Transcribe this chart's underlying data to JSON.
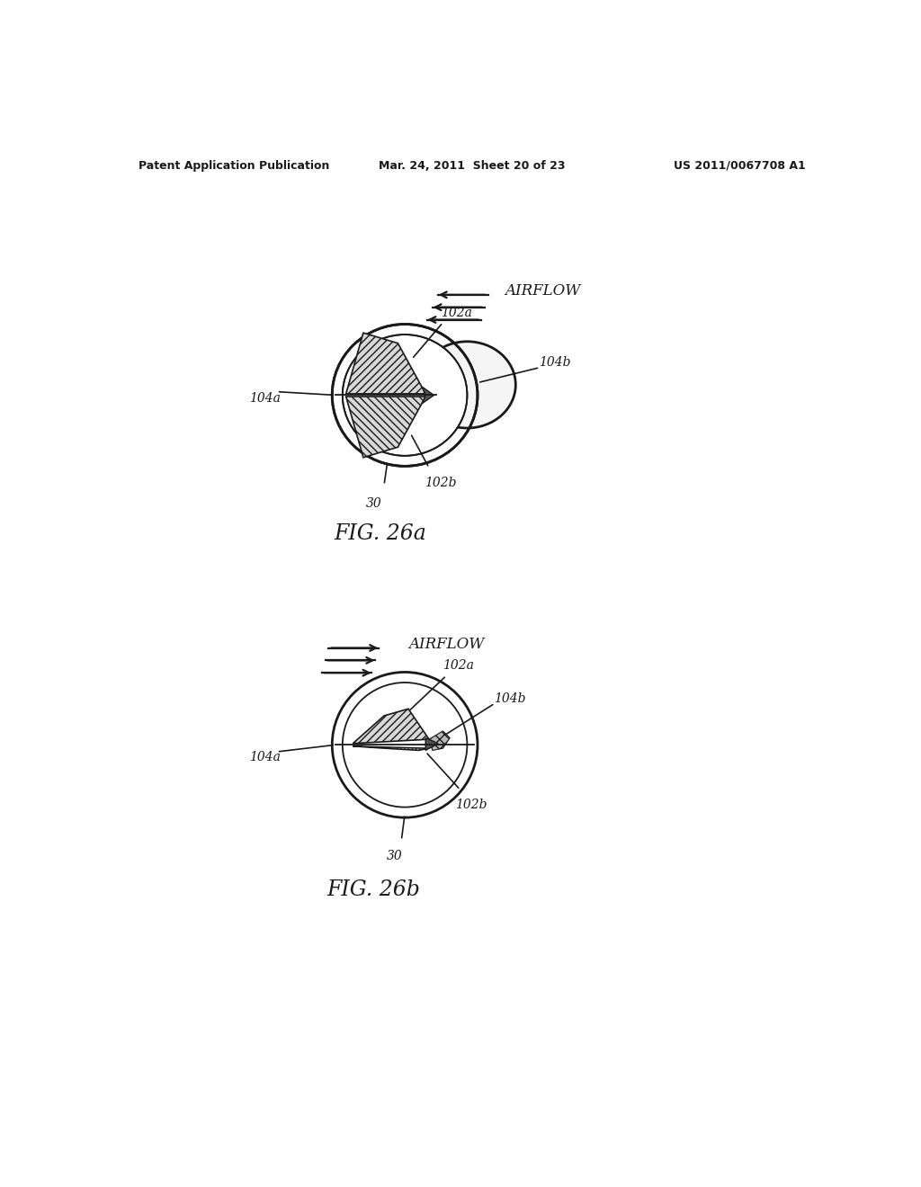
{
  "bg_color": "#ffffff",
  "line_color": "#1a1a1a",
  "header_left": "Patent Application Publication",
  "header_mid": "Mar. 24, 2011  Sheet 20 of 23",
  "header_right": "US 2011/0067708 A1",
  "fig26a_label": "FIG. 26a",
  "fig26b_label": "FIG. 26b",
  "airflow_label": "AIRFLOW"
}
